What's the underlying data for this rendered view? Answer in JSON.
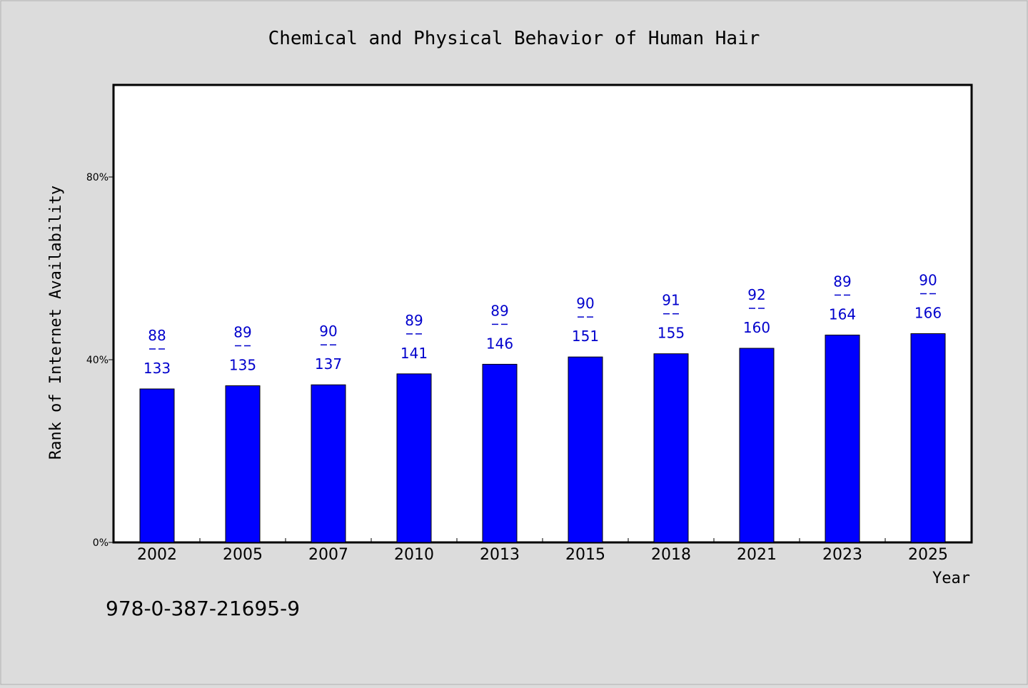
{
  "chart_data": {
    "type": "bar",
    "title": "Chemical and Physical Behavior of Human Hair",
    "xlabel": "Year",
    "ylabel": "Rank of Internet Availability",
    "categories": [
      "2002",
      "2005",
      "2007",
      "2010",
      "2013",
      "2015",
      "2018",
      "2021",
      "2023",
      "2025"
    ],
    "values": [
      33.6,
      34.3,
      34.5,
      36.9,
      39.0,
      40.6,
      41.3,
      42.5,
      45.4,
      45.7
    ],
    "numerators": [
      "88",
      "89",
      "90",
      "89",
      "89",
      "90",
      "91",
      "92",
      "89",
      "90"
    ],
    "denominators": [
      "133",
      "135",
      "137",
      "141",
      "146",
      "151",
      "155",
      "160",
      "164",
      "166"
    ],
    "ylim": [
      0,
      100
    ],
    "yticks": [
      0,
      40,
      80
    ],
    "ytick_labels": [
      "0%",
      "40%",
      "80%"
    ],
    "bar_color": "#0000ff",
    "label_color": "#0000cc",
    "grid": false,
    "footnote": "978-0-387-21695-9"
  }
}
